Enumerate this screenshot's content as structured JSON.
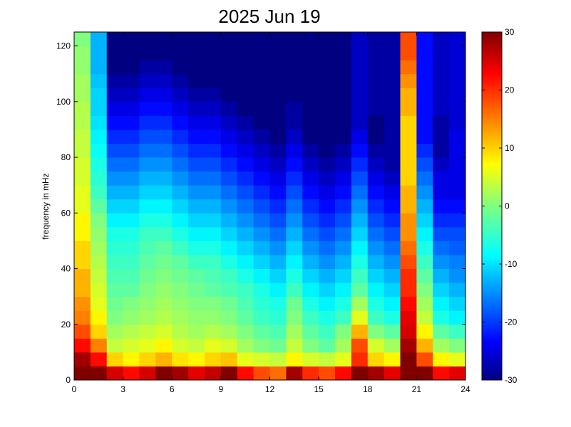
{
  "chart_data": {
    "type": "heatmap",
    "title": "2025 Jun 19",
    "xlabel": "",
    "ylabel": "frequency in mHz",
    "xlim": [
      0,
      24
    ],
    "ylim": [
      0,
      125
    ],
    "x_ticks": [
      0,
      3,
      6,
      9,
      12,
      15,
      18,
      21,
      24
    ],
    "y_ticks": [
      0,
      20,
      40,
      60,
      80,
      100,
      120
    ],
    "colorbar": {
      "colormap": "jet",
      "clim": [
        -30,
        30
      ],
      "ticks": [
        -30,
        -20,
        -10,
        0,
        10,
        20,
        30
      ]
    },
    "grid": {
      "x_hours": [
        0.5,
        1.5,
        2.5,
        3.5,
        4.5,
        5.5,
        6.5,
        7.5,
        8.5,
        9.5,
        10.5,
        11.5,
        12.5,
        13.5,
        14.5,
        15.5,
        16.5,
        17.5,
        18.5,
        19.5,
        20.5,
        21.5,
        22.5,
        23.5
      ],
      "y_mhz": [
        2.5,
        7.5,
        12.5,
        17.5,
        22.5,
        27.5,
        32.5,
        37.5,
        42.5,
        47.5,
        52.5,
        57.5,
        62.5,
        67.5,
        72.5,
        77.5,
        82.5,
        87.5,
        92.5,
        97.5,
        102.5,
        107.5,
        112.5,
        117.5,
        122.5
      ],
      "values": [
        [
          30,
          30,
          25,
          22,
          25,
          30,
          28,
          24,
          26,
          30,
          22,
          18,
          16,
          28,
          20,
          18,
          22,
          30,
          28,
          24,
          30,
          30,
          22,
          24
        ],
        [
          28,
          22,
          10,
          8,
          10,
          12,
          9,
          8,
          10,
          11,
          6,
          5,
          4,
          8,
          5,
          4,
          6,
          20,
          10,
          8,
          30,
          18,
          8,
          6
        ],
        [
          22,
          15,
          4,
          5,
          6,
          8,
          5,
          4,
          6,
          5,
          2,
          0,
          -1,
          4,
          0,
          -2,
          2,
          18,
          5,
          2,
          28,
          12,
          2,
          0
        ],
        [
          18,
          10,
          2,
          3,
          4,
          5,
          3,
          2,
          3,
          2,
          0,
          -2,
          -3,
          2,
          -2,
          -4,
          0,
          12,
          0,
          -2,
          25,
          8,
          -2,
          -4
        ],
        [
          15,
          8,
          0,
          1,
          2,
          3,
          2,
          1,
          1,
          0,
          -2,
          -4,
          -5,
          0,
          -4,
          -6,
          -4,
          6,
          -4,
          -6,
          24,
          4,
          -6,
          -8
        ],
        [
          14,
          6,
          -1,
          0,
          1,
          2,
          1,
          0,
          0,
          -1,
          -3,
          -5,
          -6,
          -1,
          -6,
          -8,
          -6,
          2,
          -6,
          -8,
          22,
          2,
          -8,
          -10
        ],
        [
          12,
          5,
          -2,
          -2,
          0,
          1,
          0,
          -1,
          -2,
          -3,
          -4,
          -6,
          -8,
          -4,
          -8,
          -10,
          -8,
          -2,
          -8,
          -10,
          20,
          0,
          -10,
          -12
        ],
        [
          12,
          4,
          -3,
          -3,
          -1,
          0,
          -1,
          -2,
          -3,
          -4,
          -6,
          -8,
          -10,
          -6,
          -10,
          -12,
          -10,
          -4,
          -10,
          -12,
          20,
          -2,
          -12,
          -14
        ],
        [
          10,
          3,
          -4,
          -4,
          -2,
          -1,
          -2,
          -4,
          -4,
          -6,
          -8,
          -10,
          -12,
          -8,
          -12,
          -14,
          -12,
          -6,
          -12,
          -14,
          18,
          -4,
          -14,
          -15
        ],
        [
          10,
          2,
          -5,
          -5,
          -3,
          -2,
          -4,
          -6,
          -6,
          -8,
          -10,
          -12,
          -14,
          -10,
          -14,
          -16,
          -14,
          -8,
          -14,
          -16,
          16,
          -6,
          -16,
          -17
        ],
        [
          8,
          1,
          -6,
          -6,
          -4,
          -4,
          -6,
          -8,
          -8,
          -10,
          -12,
          -14,
          -16,
          -12,
          -16,
          -18,
          -16,
          -10,
          -16,
          -18,
          14,
          -8,
          -18,
          -18
        ],
        [
          8,
          0,
          -8,
          -8,
          -6,
          -6,
          -8,
          -10,
          -10,
          -12,
          -14,
          -16,
          -18,
          -14,
          -18,
          -20,
          -18,
          -12,
          -18,
          -20,
          14,
          -10,
          -20,
          -20
        ],
        [
          6,
          -2,
          -10,
          -10,
          -8,
          -8,
          -10,
          -12,
          -12,
          -14,
          -16,
          -18,
          -20,
          -16,
          -20,
          -22,
          -20,
          -14,
          -20,
          -22,
          12,
          -12,
          -22,
          -22
        ],
        [
          6,
          -4,
          -12,
          -12,
          -10,
          -10,
          -12,
          -14,
          -14,
          -16,
          -18,
          -20,
          -22,
          -18,
          -22,
          -24,
          -22,
          -16,
          -22,
          -24,
          12,
          -14,
          -24,
          -24
        ],
        [
          5,
          -5,
          -14,
          -14,
          -12,
          -12,
          -14,
          -16,
          -16,
          -18,
          -20,
          -22,
          -24,
          -20,
          -24,
          -26,
          -24,
          -18,
          -24,
          -26,
          10,
          -16,
          -24,
          -24
        ],
        [
          5,
          -6,
          -16,
          -16,
          -14,
          -14,
          -16,
          -18,
          -18,
          -20,
          -22,
          -24,
          -26,
          -22,
          -26,
          -28,
          -26,
          -20,
          -26,
          -28,
          10,
          -18,
          -26,
          -24
        ],
        [
          4,
          -7,
          -18,
          -18,
          -16,
          -16,
          -18,
          -20,
          -20,
          -22,
          -24,
          -26,
          -28,
          -24,
          -28,
          -30,
          -28,
          -22,
          -28,
          -28,
          10,
          -20,
          -28,
          -24
        ],
        [
          4,
          -8,
          -20,
          -20,
          -18,
          -18,
          -20,
          -22,
          -22,
          -24,
          -26,
          -28,
          -30,
          -26,
          -30,
          -30,
          -30,
          -24,
          -30,
          -28,
          10,
          -22,
          -28,
          -24
        ],
        [
          3,
          -9,
          -22,
          -22,
          -20,
          -20,
          -22,
          -24,
          -24,
          -26,
          -28,
          -30,
          -30,
          -28,
          -30,
          -30,
          -30,
          -26,
          -30,
          -28,
          10,
          -22,
          -28,
          -25
        ],
        [
          3,
          -10,
          -24,
          -24,
          -22,
          -22,
          -24,
          -26,
          -26,
          -28,
          -30,
          -30,
          -30,
          -28,
          -30,
          -30,
          -30,
          -26,
          -28,
          -28,
          12,
          -22,
          -26,
          -25
        ],
        [
          2,
          -10,
          -26,
          -26,
          -24,
          -24,
          -26,
          -28,
          -28,
          -30,
          -30,
          -30,
          -30,
          -30,
          -30,
          -30,
          -30,
          -26,
          -28,
          -28,
          12,
          -22,
          -26,
          -25
        ],
        [
          2,
          -11,
          -28,
          -28,
          -26,
          -26,
          -28,
          -30,
          -30,
          -30,
          -30,
          -30,
          -30,
          -30,
          -30,
          -30,
          -30,
          -26,
          -28,
          -28,
          14,
          -22,
          -26,
          -25
        ],
        [
          1,
          -12,
          -30,
          -30,
          -28,
          -28,
          -30,
          -30,
          -30,
          -30,
          -30,
          -30,
          -30,
          -30,
          -30,
          -30,
          -30,
          -26,
          -28,
          -28,
          16,
          -22,
          -26,
          -25
        ],
        [
          1,
          -12,
          -30,
          -30,
          -30,
          -30,
          -30,
          -30,
          -30,
          -30,
          -30,
          -30,
          -30,
          -30,
          -30,
          -30,
          -30,
          -26,
          -28,
          -28,
          18,
          -22,
          -26,
          -25
        ],
        [
          0,
          -12,
          -30,
          -30,
          -30,
          -30,
          -30,
          -30,
          -30,
          -30,
          -30,
          -30,
          -30,
          -30,
          -30,
          -30,
          -30,
          -26,
          -28,
          -28,
          18,
          -22,
          -26,
          -25
        ]
      ]
    }
  }
}
